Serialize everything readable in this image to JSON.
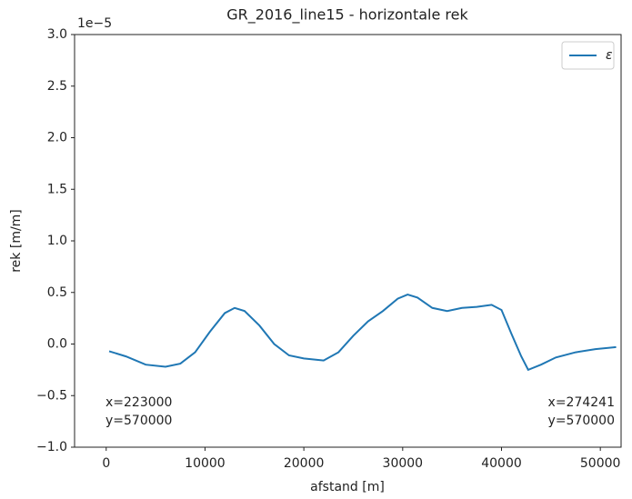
{
  "chart_data": {
    "type": "line",
    "title": "GR_2016_line15 - horizontale rek",
    "x_label": "afstand [m]",
    "y_label": "rek [m/m]",
    "y_offset_label": "1e−5",
    "x": [
      300,
      2000,
      4000,
      6000,
      7500,
      9000,
      10500,
      12000,
      13000,
      14000,
      15500,
      17000,
      18500,
      20000,
      22000,
      23500,
      25000,
      26500,
      28000,
      29500,
      30500,
      31500,
      33000,
      34500,
      36000,
      37500,
      39000,
      40000,
      41000,
      42000,
      42700,
      44000,
      45500,
      47500,
      49500,
      51600
    ],
    "series": [
      {
        "name": "ε",
        "color": "#1f77b4",
        "values": [
          -0.07,
          -0.12,
          -0.2,
          -0.22,
          -0.19,
          -0.08,
          0.12,
          0.3,
          0.35,
          0.32,
          0.18,
          0.0,
          -0.11,
          -0.14,
          -0.16,
          -0.08,
          0.08,
          0.22,
          0.32,
          0.44,
          0.48,
          0.45,
          0.35,
          0.32,
          0.35,
          0.36,
          0.38,
          0.33,
          0.1,
          -0.12,
          -0.25,
          -0.2,
          -0.13,
          -0.08,
          -0.05,
          -0.03
        ]
      }
    ],
    "xlim": [
      -3200,
      52100
    ],
    "xticks": [
      0,
      10000,
      20000,
      30000,
      40000,
      50000
    ],
    "ylim": [
      -1.0,
      3.0
    ],
    "yticks": [
      {
        "value": -1.0,
        "label": "−1.0"
      },
      {
        "value": -0.5,
        "label": "−0.5"
      },
      {
        "value": 0.0,
        "label": "0.0"
      },
      0.5,
      {
        "value": 1.0,
        "label": "1.0"
      },
      1.5,
      {
        "value": 2.0,
        "label": "2.0"
      },
      2.5,
      {
        "value": 3.0,
        "label": "3.0"
      }
    ],
    "legend": "upper right",
    "annotations": [
      {
        "lines": [
          "x=223000",
          "y=570000"
        ],
        "side": "left"
      },
      {
        "lines": [
          "x=274241",
          "y=570000"
        ],
        "side": "right"
      }
    ]
  }
}
